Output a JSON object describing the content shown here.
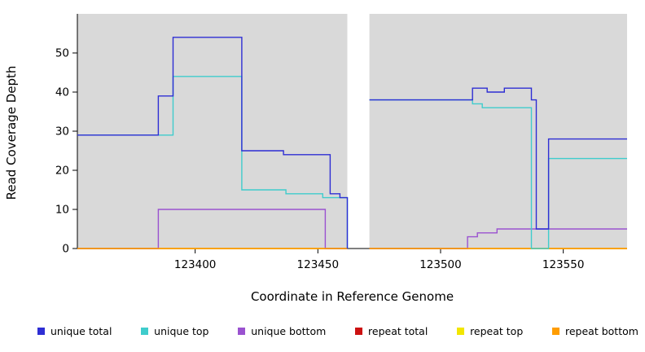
{
  "figure": {
    "background": "#ffffff",
    "panel_color": "#d9d9d9",
    "gap_color": "#ffffff",
    "axis_color": "#000000",
    "tick_label_color": "#000000"
  },
  "chart_data": {
    "type": "line",
    "subtype": "step-after",
    "title": "",
    "xlabel": "Coordinate in Reference Genome",
    "ylabel": "Read Coverage Depth",
    "xlim": [
      123352,
      123576
    ],
    "ylim": [
      0,
      60
    ],
    "x_ticks": [
      123400,
      123450,
      123500,
      123550
    ],
    "y_ticks": [
      0,
      10,
      20,
      30,
      40,
      50
    ],
    "grid": false,
    "legend_position": "bottom",
    "gap_region": [
      123462,
      123471
    ],
    "series": [
      {
        "name": "unique total",
        "color": "#2e2ed4",
        "z": 6,
        "segments": [
          [
            [
              123352,
              29
            ],
            [
              123385,
              39
            ],
            [
              123391,
              54
            ],
            [
              123419,
              25
            ],
            [
              123436,
              24
            ],
            [
              123455,
              14
            ],
            [
              123459,
              13
            ],
            [
              123462,
              0
            ]
          ],
          [
            [
              123471,
              38
            ],
            [
              123513,
              41
            ],
            [
              123519,
              40
            ],
            [
              123526,
              41
            ],
            [
              123537,
              38
            ],
            [
              123539,
              5
            ],
            [
              123544,
              28
            ],
            [
              123576,
              28
            ]
          ]
        ]
      },
      {
        "name": "unique top",
        "color": "#3fcccc",
        "z": 5,
        "segments": [
          [
            [
              123352,
              29
            ],
            [
              123391,
              44
            ],
            [
              123419,
              15
            ],
            [
              123437,
              14
            ],
            [
              123452,
              13
            ],
            [
              123462,
              0
            ]
          ],
          [
            [
              123471,
              38
            ],
            [
              123513,
              37
            ],
            [
              123517,
              36
            ],
            [
              123537,
              0
            ],
            [
              123544,
              23
            ],
            [
              123576,
              23
            ]
          ]
        ]
      },
      {
        "name": "unique bottom",
        "color": "#9a52d0",
        "z": 3,
        "segments": [
          [
            [
              123352,
              0
            ],
            [
              123385,
              10
            ],
            [
              123453,
              0
            ],
            [
              123462,
              0
            ]
          ],
          [
            [
              123471,
              0
            ],
            [
              123511,
              3
            ],
            [
              123515,
              4
            ],
            [
              123523,
              5
            ],
            [
              123576,
              5
            ]
          ]
        ]
      },
      {
        "name": "repeat total",
        "color": "#cc1111",
        "z": 1,
        "segments": [
          [
            [
              123352,
              0
            ],
            [
              123462,
              0
            ]
          ],
          [
            [
              123471,
              0
            ],
            [
              123576,
              0
            ]
          ]
        ]
      },
      {
        "name": "repeat top",
        "color": "#f2e600",
        "z": 2,
        "segments": [
          [
            [
              123352,
              0
            ],
            [
              123462,
              0
            ]
          ],
          [
            [
              123471,
              0
            ],
            [
              123576,
              0
            ]
          ]
        ]
      },
      {
        "name": "repeat bottom",
        "color": "#ff9d00",
        "z": 4,
        "segments": [
          [
            [
              123352,
              0
            ],
            [
              123462,
              0
            ]
          ],
          [
            [
              123471,
              0
            ],
            [
              123576,
              0
            ]
          ]
        ]
      }
    ]
  }
}
